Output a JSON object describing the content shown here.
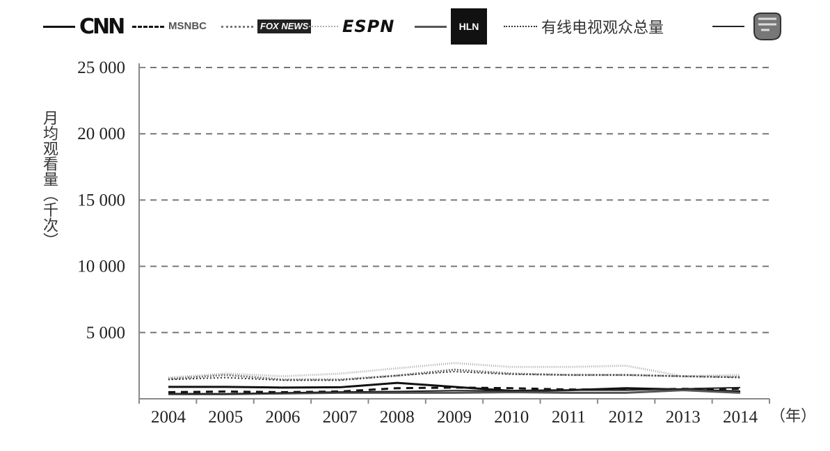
{
  "chart_data": {
    "type": "line",
    "title": "",
    "ylabel": "月均观看量（千次）",
    "xlabel": "（年）",
    "ylim": [
      0,
      25000
    ],
    "yticks": [
      "5 000",
      "10 000",
      "15 000",
      "20 000",
      "25 000"
    ],
    "ytick_values": [
      5000,
      10000,
      15000,
      20000,
      25000
    ],
    "categories": [
      "2004",
      "2005",
      "2006",
      "2007",
      "2008",
      "2009",
      "2010",
      "2011",
      "2012",
      "2013",
      "2014"
    ],
    "grid": "horizontal dashed",
    "legend_position": "top",
    "series": [
      {
        "key": "cnn",
        "values": [
          900,
          900,
          850,
          870,
          1200,
          900,
          600,
          650,
          800,
          700,
          550
        ],
        "color": "#111111",
        "dash": "",
        "width": 3
      },
      {
        "key": "msnbc",
        "values": [
          500,
          550,
          500,
          550,
          800,
          850,
          800,
          700,
          700,
          750,
          750
        ],
        "color": "#111111",
        "dash": "10,8",
        "width": 3
      },
      {
        "key": "fox",
        "values": [
          1500,
          1800,
          1450,
          1450,
          1750,
          2200,
          1900,
          1800,
          1800,
          1700,
          1650
        ],
        "color": "#777777",
        "dash": "2,2",
        "width": 3
      },
      {
        "key": "espn",
        "values": [
          1600,
          1900,
          1700,
          1900,
          2300,
          2700,
          2400,
          2400,
          2500,
          1700,
          1800
        ],
        "color": "#aaaaaa",
        "dash": "1,2",
        "width": 3
      },
      {
        "key": "hln",
        "values": [
          350,
          350,
          400,
          450,
          450,
          450,
          500,
          450,
          450,
          650,
          450
        ],
        "color": "#555555",
        "dash": "",
        "width": 3
      },
      {
        "key": "total",
        "name": "有线电视观众总量",
        "values": [
          1450,
          1600,
          1400,
          1400,
          1750,
          2050,
          1850,
          1800,
          1800,
          1700,
          1600
        ],
        "color": "#333333",
        "dash": "2,3",
        "width": 2
      },
      {
        "key": "pewdiepie",
        "values": [
          400,
          380,
          450,
          520,
          550,
          620,
          600,
          650,
          650,
          750,
          850
        ],
        "color": "#222222",
        "dash": "",
        "width": 2
      }
    ]
  },
  "legend": {
    "cnn_logo": "CNN",
    "msnbc_logo": "MSNBC",
    "fox_logo": "FOX NEWS",
    "espn_logo": "ESPN",
    "hln_logo": "HLN",
    "total_label": "有线电视观众总量",
    "brofist_icon": "brofist-icon"
  }
}
